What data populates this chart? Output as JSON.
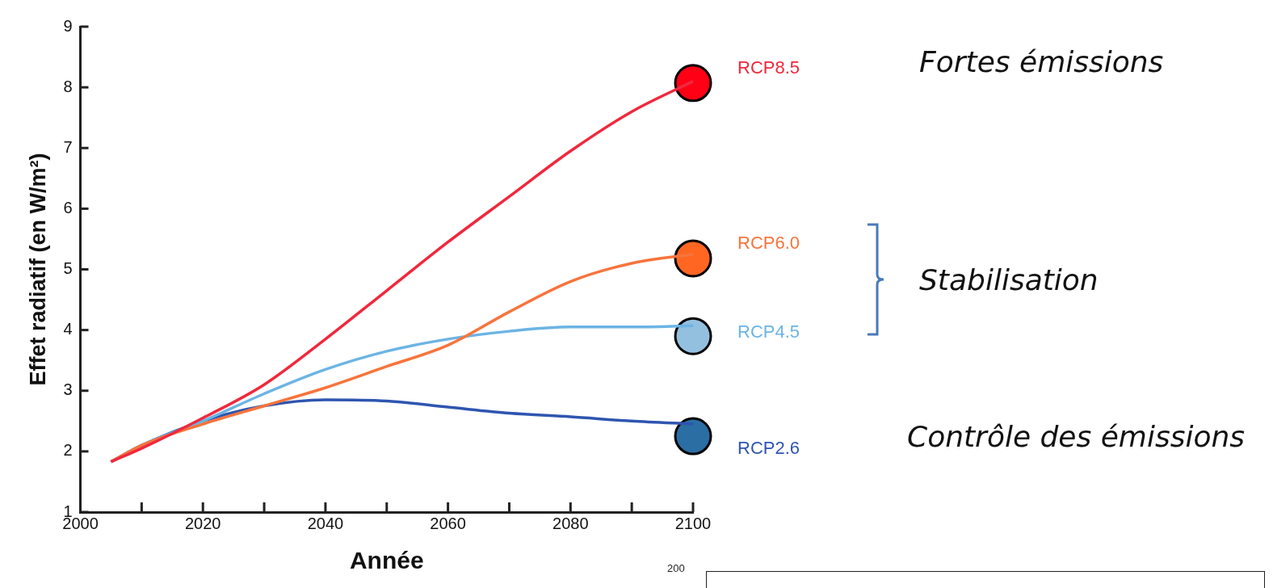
{
  "chart_data": {
    "type": "line",
    "xlabel": "Année",
    "ylabel": "Effet radiatif (en W/m²)",
    "xlim": [
      2000,
      2100
    ],
    "ylim": [
      1,
      9
    ],
    "xticks": [
      2000,
      {
        "value": 2010,
        "label": null
      },
      2020,
      {
        "value": 2030,
        "label": null
      },
      2040,
      {
        "value": 2050,
        "label": null
      },
      2060,
      {
        "value": 2070,
        "label": null
      },
      2080,
      {
        "value": 2090,
        "label": null
      },
      2100
    ],
    "yticks": [
      1,
      2,
      3,
      4,
      5,
      6,
      7,
      8,
      9
    ],
    "grid": false,
    "legend": false,
    "marker": "none",
    "line_style": "solid",
    "series": [
      {
        "name": "RCP8.5",
        "color": "#f0283c",
        "x": [
          2005,
          2010,
          2020,
          2030,
          2040,
          2050,
          2060,
          2070,
          2080,
          2090,
          2100
        ],
        "values": [
          1.83,
          2.05,
          2.55,
          3.1,
          3.85,
          4.65,
          5.45,
          6.2,
          6.95,
          7.6,
          8.1
        ]
      },
      {
        "name": "RCP6.0",
        "color": "#f7743c",
        "x": [
          2005,
          2010,
          2020,
          2030,
          2040,
          2050,
          2060,
          2070,
          2080,
          2090,
          2100
        ],
        "values": [
          1.83,
          2.1,
          2.45,
          2.75,
          3.05,
          3.4,
          3.75,
          4.3,
          4.8,
          5.1,
          5.25
        ]
      },
      {
        "name": "RCP4.5",
        "color": "#6cb4e4",
        "x": [
          2005,
          2010,
          2020,
          2030,
          2040,
          2050,
          2060,
          2070,
          2080,
          2090,
          2100
        ],
        "values": [
          1.83,
          2.1,
          2.5,
          2.95,
          3.35,
          3.65,
          3.85,
          3.98,
          4.05,
          4.05,
          4.07
        ]
      },
      {
        "name": "RCP2.6",
        "color": "#2f55b0",
        "x": [
          2005,
          2010,
          2020,
          2030,
          2040,
          2050,
          2060,
          2070,
          2080,
          2090,
          2100
        ],
        "values": [
          1.83,
          2.1,
          2.5,
          2.75,
          2.85,
          2.83,
          2.73,
          2.63,
          2.57,
          2.5,
          2.45
        ]
      },
      {
        "type": "scatter",
        "marker": "circle",
        "color": "#ff0015",
        "x": [
          2100
        ],
        "values": [
          8.07
        ]
      },
      {
        "type": "scatter",
        "marker": "circle",
        "color": "#ff6622",
        "x": [
          2100
        ],
        "values": [
          5.18
        ]
      },
      {
        "type": "scatter",
        "marker": "circle",
        "color": "#94c0e0",
        "x": [
          2100
        ],
        "values": [
          3.9
        ]
      },
      {
        "type": "scatter",
        "marker": "circle",
        "color": "#2a6ea4",
        "x": [
          2100
        ],
        "values": [
          2.25
        ]
      }
    ],
    "annotations": [
      "Fortes émissions",
      "Stabilisation",
      "Contrôle des émissions",
      "200"
    ]
  }
}
